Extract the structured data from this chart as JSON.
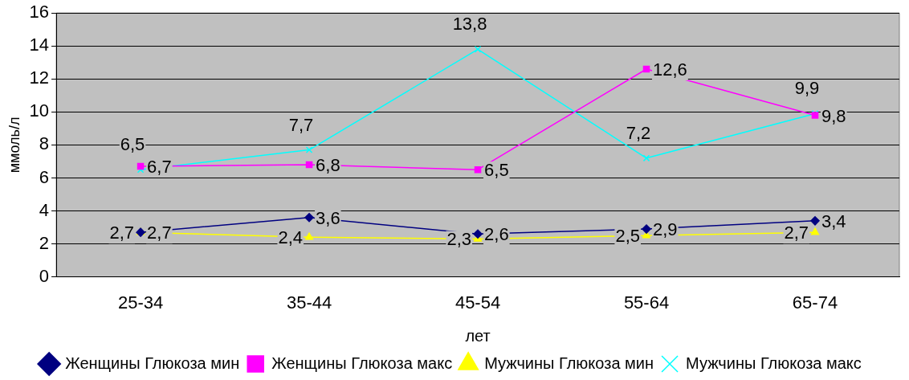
{
  "chart_data": {
    "type": "line",
    "xlabel": "лет",
    "ylabel": "ммоль/л",
    "categories": [
      "25-34",
      "35-44",
      "45-54",
      "55-64",
      "65-74"
    ],
    "ylim": [
      0,
      16
    ],
    "yticks": [
      0,
      2,
      4,
      6,
      8,
      10,
      12,
      14,
      16
    ],
    "grid": "y",
    "legend": "bottom",
    "line_style": "solid",
    "series": [
      {
        "name": "Женщины Глюкоза мин",
        "color": "#000080",
        "marker": "diamond",
        "values": [
          2.7,
          3.6,
          2.6,
          2.9,
          3.4
        ],
        "value_labels": [
          "2,7",
          "3,6",
          "2,6",
          "2,9",
          "3,4"
        ]
      },
      {
        "name": "Женщины Глюкоза макс",
        "color": "#ff00ff",
        "marker": "square",
        "values": [
          6.7,
          6.8,
          6.5,
          12.6,
          9.8
        ],
        "value_labels": [
          "6,7",
          "6,8",
          "6,5",
          "12,6",
          "9,8"
        ]
      },
      {
        "name": "Мужчины Глюкоза мин",
        "color": "#ffff00",
        "marker": "triangle",
        "values": [
          2.7,
          2.4,
          2.3,
          2.5,
          2.7
        ],
        "value_labels": [
          "2,7",
          "2,4",
          "2,3",
          "2,5",
          "2,7"
        ]
      },
      {
        "name": "Мужчины Глюкоза макс",
        "color": "#00ffff",
        "marker": "cross",
        "values": [
          6.5,
          7.7,
          13.8,
          7.2,
          9.9
        ],
        "value_labels": [
          "6,5",
          "7,7",
          "13,8",
          "7,2",
          "9,9"
        ]
      }
    ]
  }
}
